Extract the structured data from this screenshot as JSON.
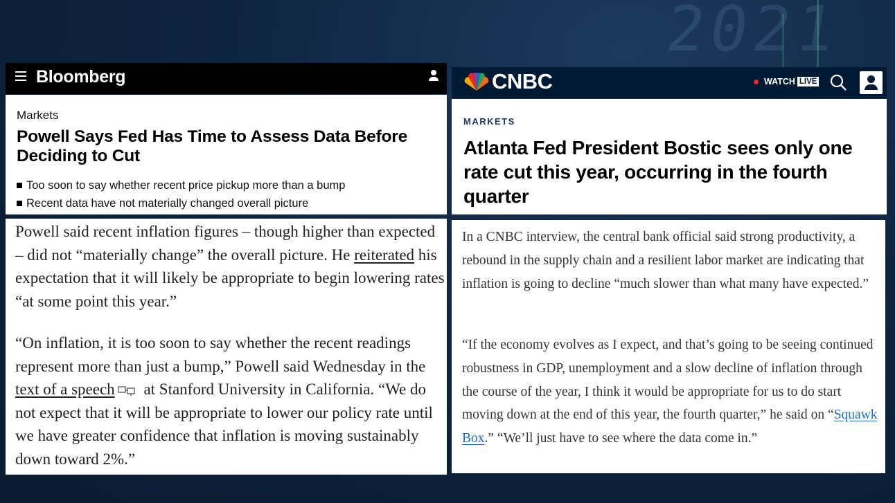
{
  "bloomberg": {
    "logo": "Bloomberg",
    "section": "Markets",
    "headline": "Powell Says Fed Has Time to Assess Data Before Deciding to Cut",
    "bullets": [
      "Too soon to say whether recent price pickup more than a bump",
      "Recent data have not materially changed overall picture"
    ],
    "para1": {
      "a": "Powell said recent inflation figures – though higher than expected – did not “materially change” the overall picture. He ",
      "link": "reiterated",
      "b": " his expectation that it will likely be appropriate to begin lowering rates “at some point this year.”"
    },
    "para2": {
      "a": "“On inflation, it is too soon to say whether the recent readings represent more than just a bump,” Powell said Wednesday in the ",
      "link": "text of a speech",
      "b": " at Stanford University in California. “We do not expect that it will be appropriate to lower our policy rate until we have greater confidence that inflation is moving sustainably down toward 2%.”"
    }
  },
  "cnbc": {
    "logo": "CNBC",
    "watch_label": "WATCH",
    "live_label": "LIVE",
    "section": "MARKETS",
    "headline": "Atlanta Fed President Bostic sees only one rate cut this year, occurring in the fourth quarter",
    "para1": "In a CNBC interview, the central bank official said strong productivity, a rebound in the supply chain and a resilient labor market are indicating that inflation is going to decline “much slower than what many have expected.”",
    "para2": {
      "a": "“If the economy evolves as I expect, and that’s going to be seeing continued robustness in GDP, unemployment and a slow decline of inflation through the course of the year, I think it would be appropriate for us to do start moving down at the end of this year, the fourth quarter,” he said on “",
      "link": "Squawk Box",
      "b": ".” “We’ll just have to see where the data come in.”"
    }
  },
  "background": {
    "deco_text": "2021"
  },
  "colors": {
    "cnbc_navy": "#001a33",
    "link_blue": "#1a6fc7",
    "live_red": "#e52b2b"
  }
}
